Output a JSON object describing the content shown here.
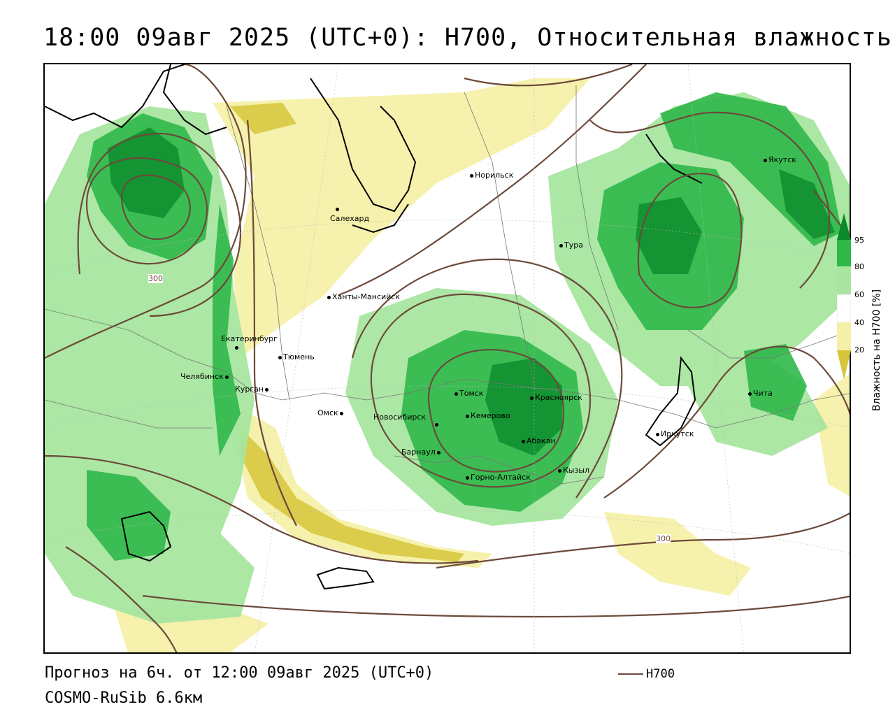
{
  "title": "18:00 09авг 2025 (UTC+0): H700, Относительная влажность",
  "footer": {
    "forecast": "Прогноз на 6ч. от 12:00 09авг 2025 (UTC+0)",
    "model": "COSMO-RuSib 6.6км",
    "legend_label": "H700"
  },
  "colorbar": {
    "label": "Влажность на H700 [%]",
    "ticks": [
      "95",
      "80",
      "60",
      "40",
      "20"
    ],
    "colors": {
      "c95": "#0b8a2a",
      "c80": "#2fb84a",
      "c60": "#a8e6a0",
      "c40": "#ffffff",
      "c20": "#f5f0a8",
      "c0": "#d6c63a"
    }
  },
  "contour_label": "300",
  "cities": [
    {
      "name": "Норильск"
    },
    {
      "name": "Салехард"
    },
    {
      "name": "Тура"
    },
    {
      "name": "Якутск"
    },
    {
      "name": "Ханты-Мансийск"
    },
    {
      "name": "Екатеринбург"
    },
    {
      "name": "Тюмень"
    },
    {
      "name": "Челябинск"
    },
    {
      "name": "Курган"
    },
    {
      "name": "Омск"
    },
    {
      "name": "Томск"
    },
    {
      "name": "Красноярск"
    },
    {
      "name": "Новосибирск"
    },
    {
      "name": "Кемерово"
    },
    {
      "name": "Абакан"
    },
    {
      "name": "Барнаул"
    },
    {
      "name": "Горно-Алтайск"
    },
    {
      "name": "Кызыл"
    },
    {
      "name": "Иркутск"
    },
    {
      "name": "Чита"
    }
  ]
}
